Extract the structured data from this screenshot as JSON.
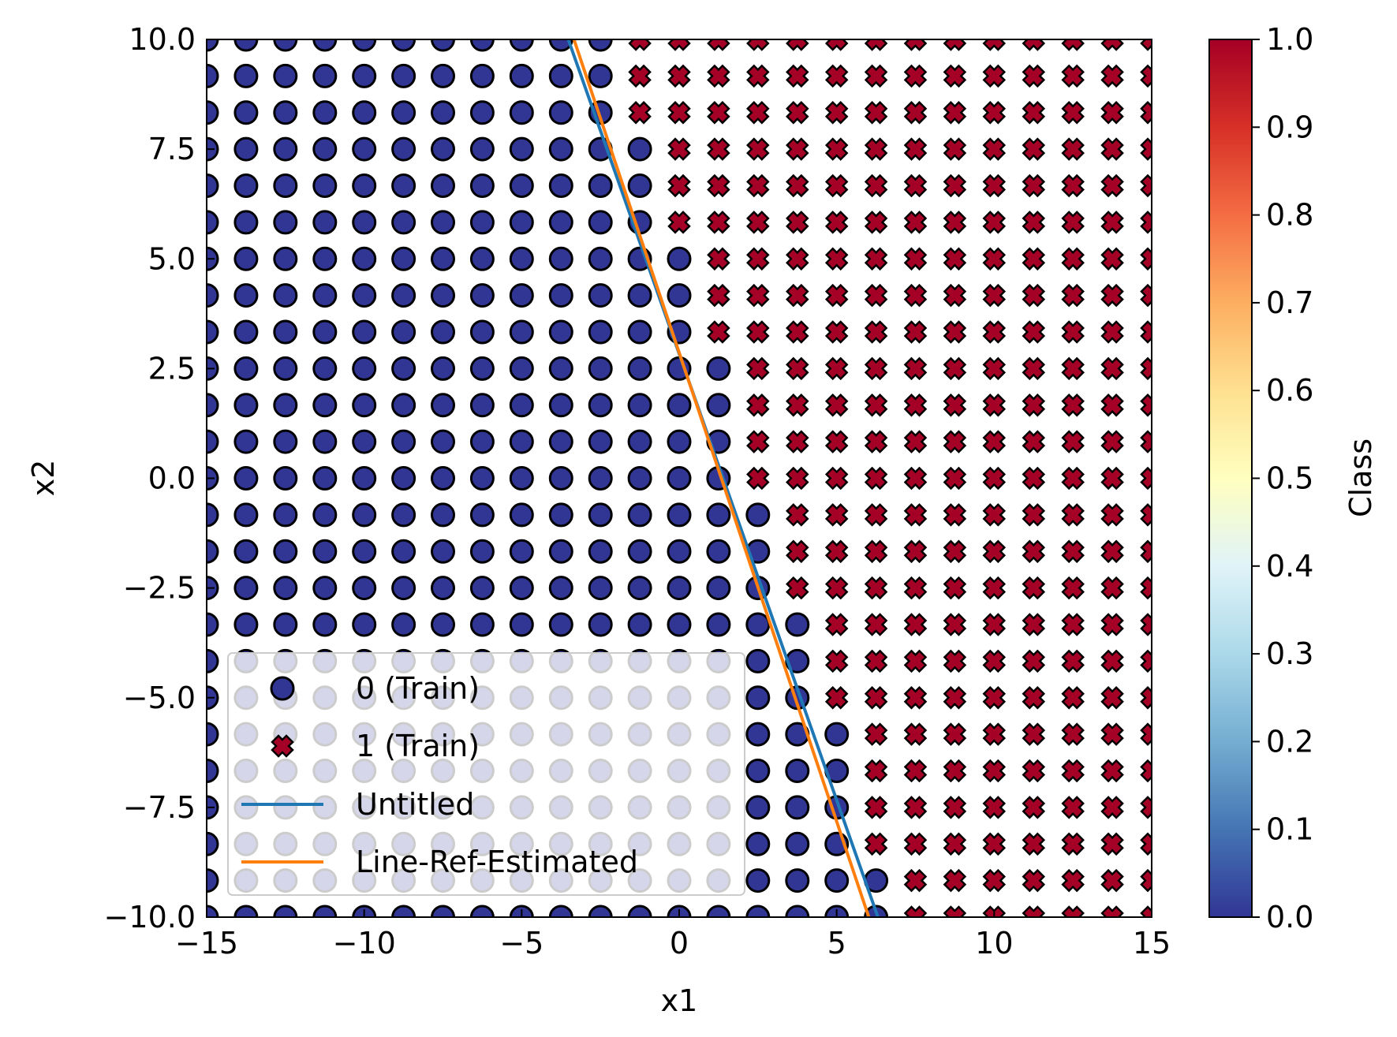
{
  "chart_data": {
    "type": "scatter",
    "title": "",
    "xlabel": "x1",
    "ylabel": "x2",
    "xlim": [
      -15,
      15
    ],
    "ylim": [
      -10,
      10
    ],
    "xticks": [
      -15,
      -10,
      -5,
      0,
      5,
      10,
      15
    ],
    "xtick_labels": [
      "−15",
      "−10",
      "−5",
      "0",
      "5",
      "10",
      "15"
    ],
    "yticks": [
      -10,
      -7.5,
      -5,
      -2.5,
      0,
      2.5,
      5,
      7.5,
      10
    ],
    "ytick_labels": [
      "−10.0",
      "−7.5",
      "−5.0",
      "−2.5",
      "0.0",
      "2.5",
      "5.0",
      "7.5",
      "10.0"
    ],
    "grid": false,
    "legend_position": "lower-left",
    "points": {
      "x_start": -15,
      "x_end": 15,
      "x_count": 25,
      "y_start": -10,
      "y_end": 10,
      "y_count": 25,
      "rule": "class 1 where x1 > 2.39 - 0.455*x2, otherwise class 0"
    },
    "series": [
      {
        "name": "0 (Train)",
        "marker": "circle",
        "color": "#313695"
      },
      {
        "name": "1 (Train)",
        "marker": "x",
        "color": "#a50026"
      },
      {
        "name": "Untitled",
        "type": "line",
        "color": "#1f77b4",
        "x": [
          -3.52,
          6.31
        ],
        "y": [
          10,
          -10
        ]
      },
      {
        "name": "Line-Ref-Estimated",
        "type": "line",
        "color": "#ff7f0e",
        "x": [
          -3.34,
          6.02
        ],
        "y": [
          10,
          -10
        ]
      }
    ],
    "colorbar": {
      "label": "Class",
      "range": [
        0,
        1
      ],
      "ticks": [
        "0.0",
        "0.1",
        "0.2",
        "0.3",
        "0.4",
        "0.5",
        "0.6",
        "0.7",
        "0.8",
        "0.9",
        "1.0"
      ],
      "colors": [
        "#313695",
        "#4575b4",
        "#74add1",
        "#abd9e9",
        "#e0f3f8",
        "#ffffbf",
        "#fee090",
        "#fdae61",
        "#f46d43",
        "#d73027",
        "#a50026"
      ]
    }
  }
}
